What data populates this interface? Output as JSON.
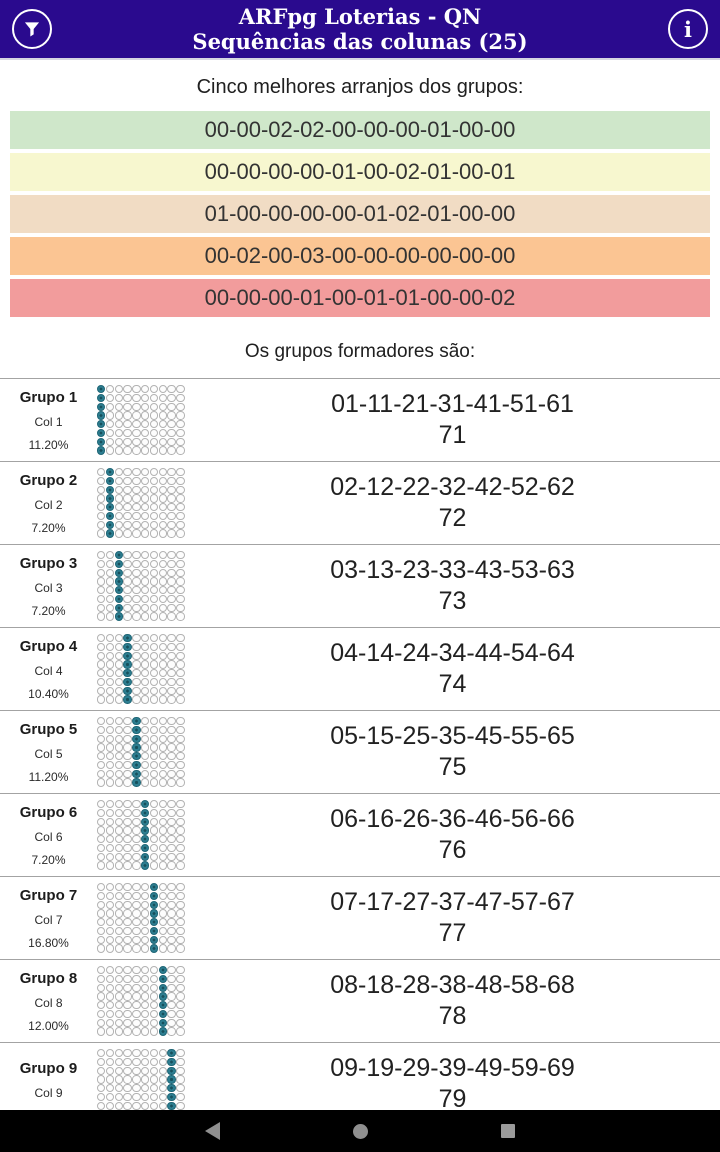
{
  "header": {
    "title": "ARFpg Loterias - QN",
    "subtitle": "Sequências das colunas (25)",
    "bg_color": "#2a0a8e",
    "left_icon": "filter-funnel-icon",
    "right_icon": "info-icon",
    "info_glyph": "i"
  },
  "arrangements": {
    "title": "Cinco melhores arranjos dos grupos:",
    "rows": [
      {
        "value": "00-00-02-02-00-00-00-01-00-00",
        "color": "#cfe7ca"
      },
      {
        "value": "00-00-00-00-01-00-02-01-00-01",
        "color": "#f7f7cf"
      },
      {
        "value": "01-00-00-00-00-01-02-01-00-00",
        "color": "#f1dcc4"
      },
      {
        "value": "00-02-00-03-00-00-00-00-00-00",
        "color": "#fbc593"
      },
      {
        "value": "00-00-00-01-00-01-01-00-00-02",
        "color": "#f29c9c"
      }
    ]
  },
  "groups": {
    "title": "Os grupos formadores são:",
    "grid": {
      "cols": 10,
      "rows": 8,
      "fill_color": "#2d7e91"
    },
    "items": [
      {
        "name": "Grupo 1",
        "col_label": "Col 1",
        "col": 1,
        "percent": "11.20%",
        "line1": "01-11-21-31-41-51-61",
        "line2": "71"
      },
      {
        "name": "Grupo 2",
        "col_label": "Col 2",
        "col": 2,
        "percent": "7.20%",
        "line1": "02-12-22-32-42-52-62",
        "line2": "72"
      },
      {
        "name": "Grupo 3",
        "col_label": "Col 3",
        "col": 3,
        "percent": "7.20%",
        "line1": "03-13-23-33-43-53-63",
        "line2": "73"
      },
      {
        "name": "Grupo 4",
        "col_label": "Col 4",
        "col": 4,
        "percent": "10.40%",
        "line1": "04-14-24-34-44-54-64",
        "line2": "74"
      },
      {
        "name": "Grupo 5",
        "col_label": "Col 5",
        "col": 5,
        "percent": "11.20%",
        "line1": "05-15-25-35-45-55-65",
        "line2": "75"
      },
      {
        "name": "Grupo 6",
        "col_label": "Col 6",
        "col": 6,
        "percent": "7.20%",
        "line1": "06-16-26-36-46-56-66",
        "line2": "76"
      },
      {
        "name": "Grupo 7",
        "col_label": "Col 7",
        "col": 7,
        "percent": "16.80%",
        "line1": "07-17-27-37-47-57-67",
        "line2": "77"
      },
      {
        "name": "Grupo 8",
        "col_label": "Col 8",
        "col": 8,
        "percent": "12.00%",
        "line1": "08-18-28-38-48-58-68",
        "line2": "78"
      },
      {
        "name": "Grupo 9",
        "col_label": "Col 9",
        "col": 9,
        "percent": "",
        "line1": "09-19-29-39-49-59-69",
        "line2": "79"
      }
    ]
  },
  "navbar": {
    "icons": [
      "back-icon",
      "home-icon",
      "recents-icon"
    ]
  }
}
